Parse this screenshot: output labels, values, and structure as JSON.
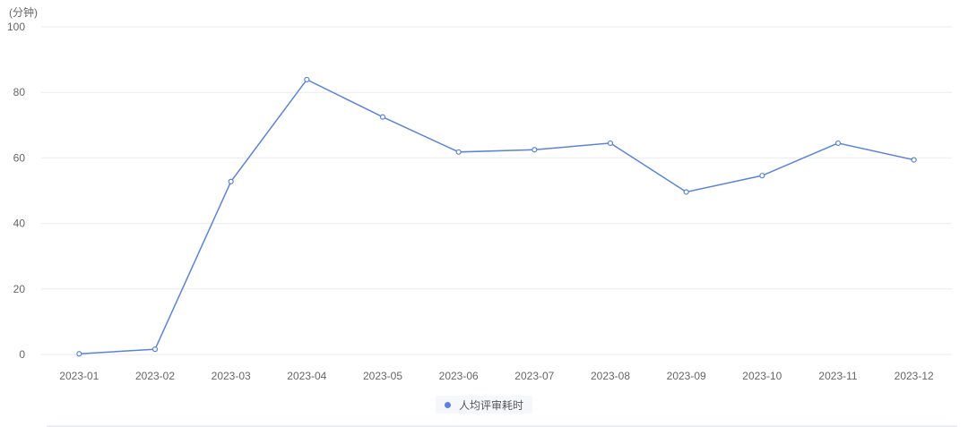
{
  "chart_data": {
    "type": "line",
    "ylabel": "(分钟)",
    "ylim": [
      0,
      100
    ],
    "yticks": [
      0,
      20,
      40,
      60,
      80,
      100
    ],
    "grid": true,
    "legend_position": "bottom",
    "categories": [
      "2023-01",
      "2023-02",
      "2023-03",
      "2023-04",
      "2023-05",
      "2023-06",
      "2023-07",
      "2023-08",
      "2023-09",
      "2023-10",
      "2023-11",
      "2023-12"
    ],
    "series": [
      {
        "name": "人均评审耗时",
        "color": "#5b83dc",
        "values": [
          0.2,
          1.6,
          52.8,
          83.9,
          72.5,
          61.8,
          62.5,
          64.5,
          49.6,
          54.6,
          64.5,
          59.4
        ]
      }
    ]
  }
}
